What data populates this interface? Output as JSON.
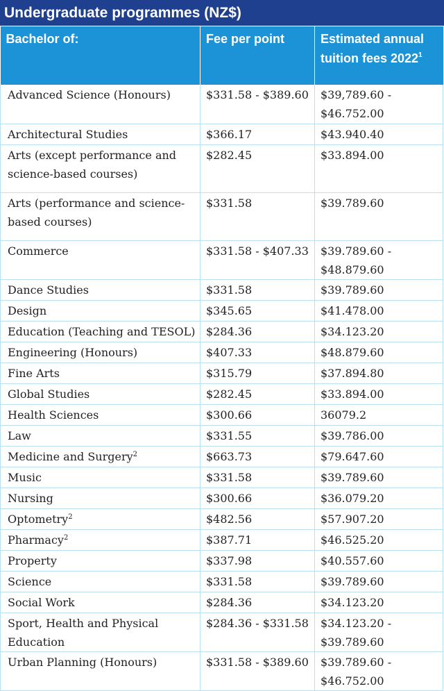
{
  "title": "Undergraduate programmes (NZ$)",
  "headers": {
    "col1": "Bachelor of:",
    "col2": "Fee per point",
    "col3": "Estimated annual tuition fees 2022",
    "col3_sup": "1"
  },
  "rows": [
    {
      "name": "Advanced Science (Honours)",
      "sup": "",
      "fee": "$331.58 - $389.60",
      "annual": "$39,789.60 - $46.752.00"
    },
    {
      "name": "Architectural Studies",
      "sup": "",
      "fee": "$366.17",
      "annual": "$43.940.40"
    },
    {
      "name": "Arts (except performance and science-based courses)",
      "sup": "",
      "fee": "$282.45",
      "annual": "$33.894.00"
    },
    {
      "name": "Arts (performance and science-based courses)",
      "sup": "",
      "fee": "$331.58",
      "annual": "$39.789.60"
    },
    {
      "name": "Commerce",
      "sup": "",
      "fee": "$331.58 - $407.33",
      "annual": "$39.789.60 - $48.879.60"
    },
    {
      "name": "Dance Studies",
      "sup": "",
      "fee": "$331.58",
      "annual": "$39.789.60"
    },
    {
      "name": "Design",
      "sup": "",
      "fee": "$345.65",
      "annual": "$41.478.00"
    },
    {
      "name": "Education (Teaching and TESOL)",
      "sup": "",
      "fee": "$284.36",
      "annual": "$34.123.20"
    },
    {
      "name": "Engineering (Honours)",
      "sup": "",
      "fee": "$407.33",
      "annual": "$48.879.60"
    },
    {
      "name": "Fine Arts",
      "sup": "",
      "fee": "$315.79",
      "annual": "$37.894.80"
    },
    {
      "name": "Global Studies",
      "sup": "",
      "fee": "$282.45",
      "annual": "$33.894.00"
    },
    {
      "name": "Health Sciences",
      "sup": "",
      "fee": "$300.66",
      "annual": "36079.2"
    },
    {
      "name": "Law",
      "sup": "",
      "fee": "$331.55",
      "annual": "$39.786.00"
    },
    {
      "name": "Medicine and Surgery",
      "sup": "2",
      "fee": "$663.73",
      "annual": "$79.647.60"
    },
    {
      "name": "Music",
      "sup": "",
      "fee": "$331.58",
      "annual": "$39.789.60"
    },
    {
      "name": "Nursing",
      "sup": "",
      "fee": "$300.66",
      "annual": "$36.079.20"
    },
    {
      "name": "Optometry",
      "sup": "2",
      "fee": "$482.56",
      "annual": "$57.907.20"
    },
    {
      "name": "Pharmacy",
      "sup": "2",
      "fee": "$387.71",
      "annual": "$46.525.20"
    },
    {
      "name": "Property",
      "sup": "",
      "fee": "$337.98",
      "annual": "$40.557.60"
    },
    {
      "name": "Science",
      "sup": "",
      "fee": "$331.58",
      "annual": "$39.789.60"
    },
    {
      "name": "Social Work",
      "sup": "",
      "fee": "$284.36",
      "annual": "$34.123.20"
    },
    {
      "name": "Sport, Health and Physical Education",
      "sup": "",
      "fee": "$284.36 - $331.58",
      "annual": "$34.123.20 - $39.789.60"
    },
    {
      "name": "Urban Planning (Honours)",
      "sup": "",
      "fee": "$331.58 - $389.60",
      "annual": "$39.789.60 - $46.752.00"
    }
  ]
}
